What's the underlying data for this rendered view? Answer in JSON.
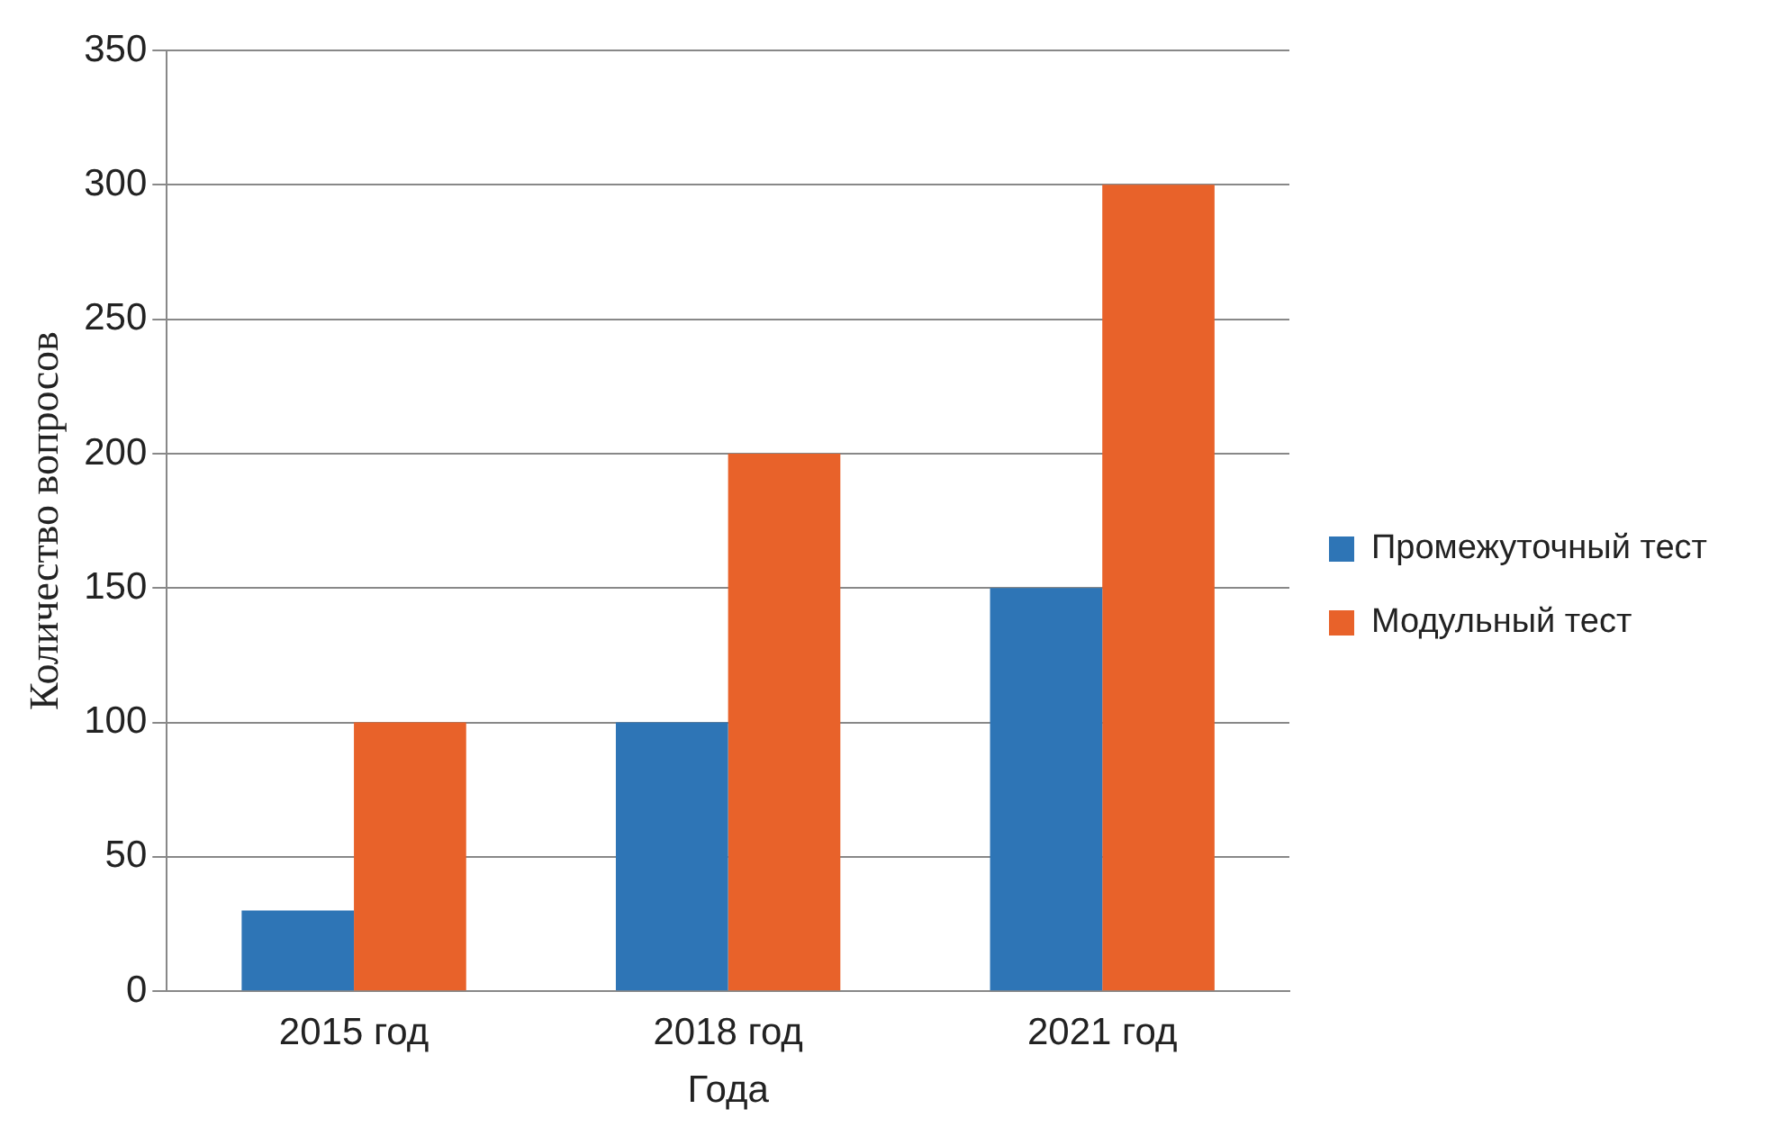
{
  "chart_data": {
    "type": "bar",
    "xlabel": "Года",
    "ylabel": "Количество вопросов",
    "categories": [
      "2015 год",
      "2018 год",
      "2021 год"
    ],
    "series": [
      {
        "name": "Промежуточный тест",
        "color": "#2e75b6",
        "values": [
          30,
          100,
          150
        ]
      },
      {
        "name": "Модульный тест",
        "color": "#e8622a",
        "values": [
          100,
          200,
          300
        ]
      }
    ],
    "ylim": [
      0,
      350
    ],
    "yticks": [
      0,
      50,
      100,
      150,
      200,
      250,
      300,
      350
    ],
    "grid": "y",
    "legend": "right"
  }
}
